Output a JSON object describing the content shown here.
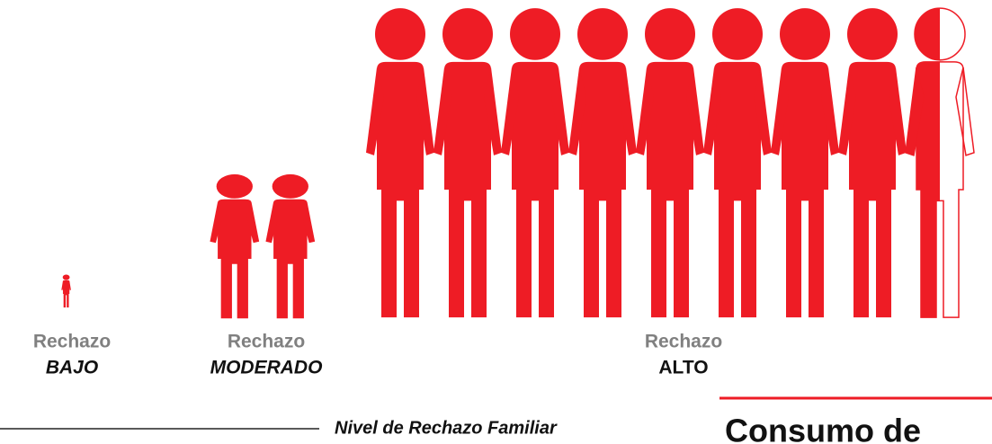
{
  "chart_data": {
    "type": "pictograph",
    "color": "#ee1c25",
    "groups": [
      {
        "label": "Rechazo",
        "level": "BAJO",
        "value": 1
      },
      {
        "label": "Rechazo",
        "level": "MODERADO",
        "value": 2
      },
      {
        "label": "Rechazo",
        "level": "ALTO",
        "value": 8.5
      }
    ],
    "xlabel": "Nivel de Rechazo Familiar",
    "next_heading": "Consumo de"
  }
}
